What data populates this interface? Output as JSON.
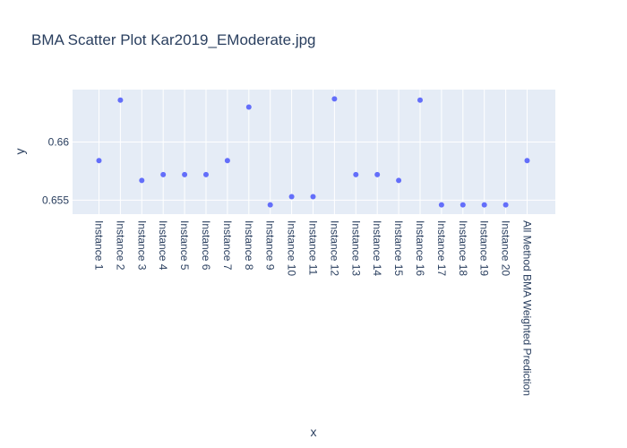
{
  "chart_data": {
    "type": "scatter",
    "title": "BMA Scatter Plot Kar2019_EModerate.jpg",
    "xlabel": "x",
    "ylabel": "y",
    "categories": [
      "Instance 1",
      "Instance 2",
      "Instance 3",
      "Instance 4",
      "Instance 5",
      "Instance 6",
      "Instance 7",
      "Instance 8",
      "Instance 9",
      "Instance 10",
      "Instance 11",
      "Instance 12",
      "Instance 13",
      "Instance 14",
      "Instance 15",
      "Instance 16",
      "Instance 17",
      "Instance 18",
      "Instance 19",
      "Instance 20",
      "All Method BMA Weighted Prediction"
    ],
    "values": [
      0.6584,
      0.6636,
      0.6567,
      0.6572,
      0.6572,
      0.6572,
      0.6584,
      0.663,
      0.6546,
      0.6553,
      0.6553,
      0.6637,
      0.6572,
      0.6572,
      0.6567,
      0.6636,
      0.6546,
      0.6546,
      0.6546,
      0.6546,
      0.6584
    ],
    "yticks": [
      0.655,
      0.66
    ],
    "ytick_labels": [
      "0.655",
      "0.66"
    ],
    "ylim": [
      0.6538,
      0.6645
    ],
    "grid": true,
    "legend": "none",
    "colors": {
      "plot_background": "#e5ecf6",
      "marker": "#636efa",
      "grid": "#ffffff",
      "text": "#2a3f5f"
    }
  }
}
